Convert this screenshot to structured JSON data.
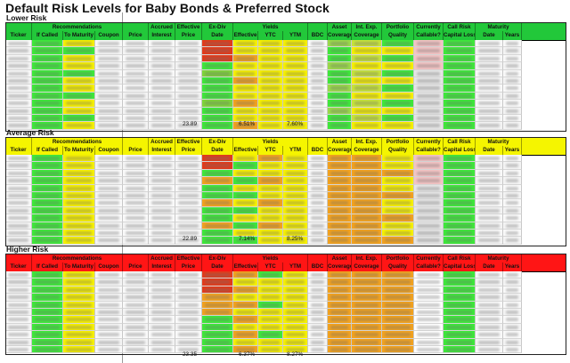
{
  "title": "Default Risk Levels for Baby Bonds & Preferred Stock",
  "colors": {
    "lower_header": "#22c83a",
    "average_header": "#f5f500",
    "higher_header": "#ff1515",
    "green": "#3ee83a",
    "yellow": "#f6f000",
    "orange": "#f2a21f",
    "red": "#e23a1b",
    "pink": "#f4c4c4",
    "gray": "#e6e6e6"
  },
  "headers": {
    "row1": {
      "recommendations": "Recommendations",
      "accrued": "Accrued",
      "effective": "Effective",
      "exdiv": "Ex-Div",
      "yields": "Yields",
      "asset": "Asset",
      "intexp": "Int. Exp.",
      "portfolio": "Portfolio",
      "currently": "Currently",
      "callrisk": "Call Risk",
      "maturity": "Maturity"
    },
    "row2": {
      "ticker": "Ticker",
      "ifcalled": "If Called",
      "tomaturity": "To Maturity",
      "coupon": "Coupon",
      "price": "Price",
      "interest": "Interest",
      "price2": "Price",
      "date": "Date",
      "effective": "Effective",
      "ytc": "YTC",
      "ytm": "YTM",
      "bdc": "BDC",
      "coverage": "Coverage",
      "coverage2": "Coverage",
      "quality": "Quality",
      "callable": "Callable?",
      "capitalloss": "Capital Loss",
      "date2": "Date",
      "years": "Years"
    }
  },
  "sections": [
    {
      "label": "Lower Risk",
      "totals": {
        "effective_price": "23.89",
        "effective_yield": "6.51%",
        "ytm": "7.60%"
      }
    },
    {
      "label": "Average Risk",
      "totals": {
        "effective_price": "22.89",
        "effective_yield": "7.14%",
        "ytm": "8.25%"
      }
    },
    {
      "label": "Higher Risk",
      "totals": {
        "effective_price": "23.35",
        "effective_yield": "6.37%",
        "ytm": "8.27%"
      }
    }
  ]
}
